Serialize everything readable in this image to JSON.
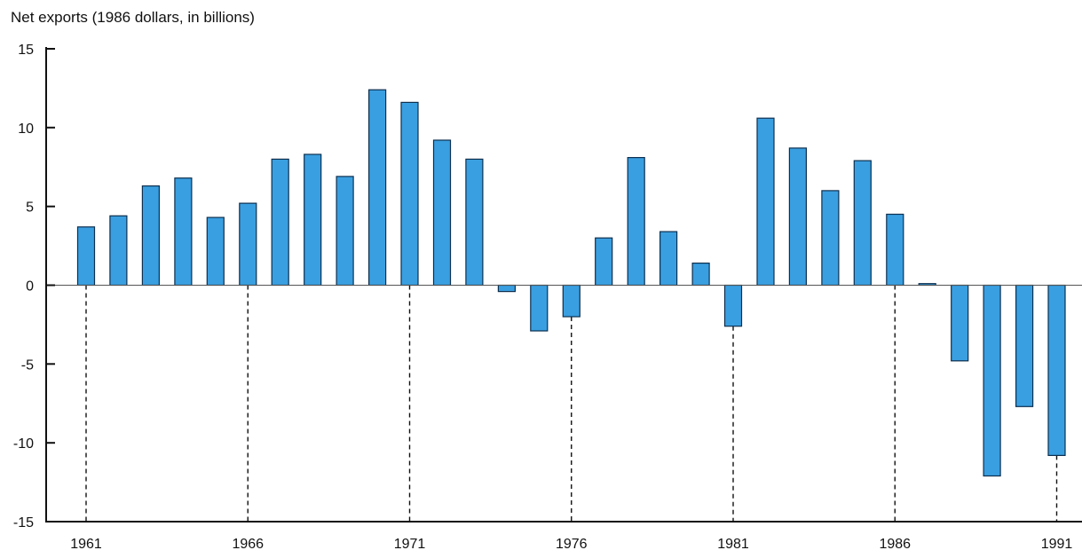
{
  "chart_data": {
    "type": "bar",
    "title": "",
    "ylabel": "Net exports (1986 dollars, in billions)",
    "xlabel": "",
    "ylim": [
      -15,
      15
    ],
    "yticks": [
      15,
      10,
      5,
      0,
      -5,
      -10,
      -15
    ],
    "xtick_labels": [
      "1961",
      "1966",
      "1971",
      "1976",
      "1981",
      "1986",
      "1991"
    ],
    "grid": false,
    "colors": {
      "bar": "#3a9fe0",
      "bar_edge": "#0d2f4f",
      "axis": "#111111"
    },
    "categories": [
      "1961",
      "1962",
      "1963",
      "1964",
      "1965",
      "1966",
      "1967",
      "1968",
      "1969",
      "1970",
      "1971",
      "1972",
      "1973",
      "1974",
      "1975",
      "1976",
      "1977",
      "1978",
      "1979",
      "1980",
      "1981",
      "1982",
      "1983",
      "1984",
      "1985",
      "1986",
      "1987",
      "1988",
      "1989",
      "1990",
      "1991"
    ],
    "values": [
      3.7,
      4.4,
      6.3,
      6.8,
      4.3,
      5.2,
      8.0,
      8.3,
      6.9,
      12.4,
      11.6,
      9.2,
      8.0,
      -0.4,
      -2.9,
      -2.0,
      3.0,
      8.1,
      3.4,
      1.4,
      -2.6,
      10.6,
      8.7,
      6.0,
      7.9,
      4.5,
      0.1,
      -4.8,
      -12.1,
      -7.7,
      -10.8
    ]
  }
}
